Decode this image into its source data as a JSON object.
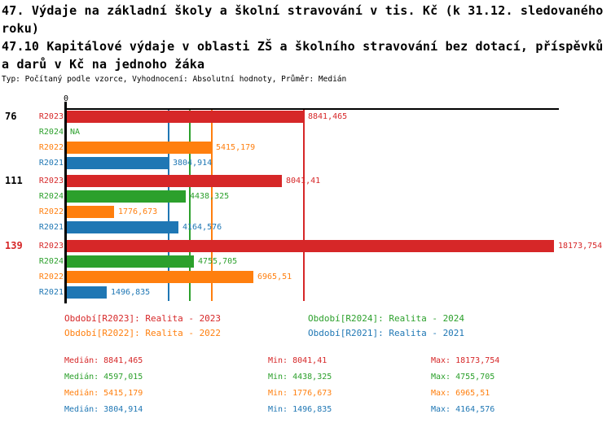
{
  "header": {
    "title1_lines": [
      "47. Výdaje na základní školy a školní stravování v tis. Kč (k 31.12. sledovaného",
      "roku)"
    ],
    "title2_lines": [
      "47.10 Kapitálové výdaje v oblasti ZŠ a školního stravování bez dotací, příspěvků",
      "a darů v Kč na jednoho žáka"
    ],
    "meta": "Typ: Počítaný podle vzorce, Vyhodnocení: Absolutní hodnoty, Průměr: Medián"
  },
  "colors": {
    "R2023": "#d62728",
    "R2024": "#2ca02c",
    "R2022": "#ff7f0e",
    "R2021": "#1f77b4",
    "axis": "#000000"
  },
  "chart_data": {
    "type": "bar",
    "orientation": "horizontal",
    "title": "47.10 Kapitálové výdaje v oblasti ZŠ a školního stravování bez dotací, příspěvků a darů v Kč na jednoho žáka",
    "x_axis": {
      "origin_label": "0",
      "xmax_estimate": 18400,
      "grid": false
    },
    "series_order": [
      "R2023",
      "R2024",
      "R2022",
      "R2021"
    ],
    "groups": [
      {
        "label": "76",
        "label_color": "#000000",
        "bars": [
          {
            "series": "R2023",
            "value": 8841.465,
            "value_label": "8841,465"
          },
          {
            "series": "R2024",
            "value": null,
            "value_label": "NA"
          },
          {
            "series": "R2022",
            "value": 5415.179,
            "value_label": "5415,179"
          },
          {
            "series": "R2021",
            "value": 3804.914,
            "value_label": "3804,914"
          }
        ]
      },
      {
        "label": "111",
        "label_color": "#000000",
        "bars": [
          {
            "series": "R2023",
            "value": 8041.41,
            "value_label": "8041,41"
          },
          {
            "series": "R2024",
            "value": 4438.325,
            "value_label": "4438,325"
          },
          {
            "series": "R2022",
            "value": 1776.673,
            "value_label": "1776,673"
          },
          {
            "series": "R2021",
            "value": 4164.576,
            "value_label": "4164,576"
          }
        ]
      },
      {
        "label": "139",
        "label_color": "#d62728",
        "bars": [
          {
            "series": "R2023",
            "value": 18173.754,
            "value_label": "18173,754"
          },
          {
            "series": "R2024",
            "value": 4755.705,
            "value_label": "4755,705"
          },
          {
            "series": "R2022",
            "value": 6965.51,
            "value_label": "6965,51"
          },
          {
            "series": "R2021",
            "value": 1496.835,
            "value_label": "1496,835"
          }
        ]
      }
    ],
    "median_lines": [
      {
        "series": "R2023",
        "value": 8841.465
      },
      {
        "series": "R2024",
        "value": 4597.015
      },
      {
        "series": "R2022",
        "value": 5415.179
      },
      {
        "series": "R2021",
        "value": 3804.914
      }
    ]
  },
  "legend": {
    "items": [
      {
        "series": "R2023",
        "label": "Období[R2023]: Realita - 2023"
      },
      {
        "series": "R2024",
        "label": "Období[R2024]: Realita - 2024"
      },
      {
        "series": "R2022",
        "label": "Období[R2022]: Realita - 2022"
      },
      {
        "series": "R2021",
        "label": "Období[R2021]: Realita - 2021"
      }
    ]
  },
  "stats": {
    "rows": [
      {
        "series": "R2023",
        "median": "Medián: 8841,465",
        "min": "Min: 8041,41",
        "max": "Max: 18173,754"
      },
      {
        "series": "R2024",
        "median": "Medián: 4597,015",
        "min": "Min: 4438,325",
        "max": "Max: 4755,705"
      },
      {
        "series": "R2022",
        "median": "Medián: 5415,179",
        "min": "Min: 1776,673",
        "max": "Max: 6965,51"
      },
      {
        "series": "R2021",
        "median": "Medián: 3804,914",
        "min": "Min: 1496,835",
        "max": "Max: 4164,576"
      }
    ]
  }
}
